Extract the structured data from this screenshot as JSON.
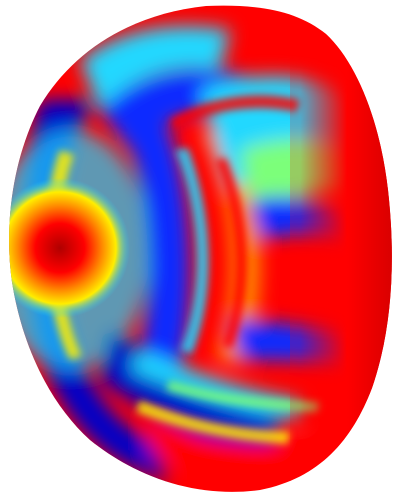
{
  "scene": {
    "subject": "jet-colormap-dome",
    "colormap": "jet",
    "palette": {
      "background": "#ffffff",
      "dark_red": "#b00000",
      "red": "#ff0000",
      "orange": "#ff8800",
      "yellow": "#ffee00",
      "green": "#7cff7a",
      "cyan": "#20d8ff",
      "blue": "#0a2cff",
      "dark_blue": "#0000c8"
    }
  }
}
